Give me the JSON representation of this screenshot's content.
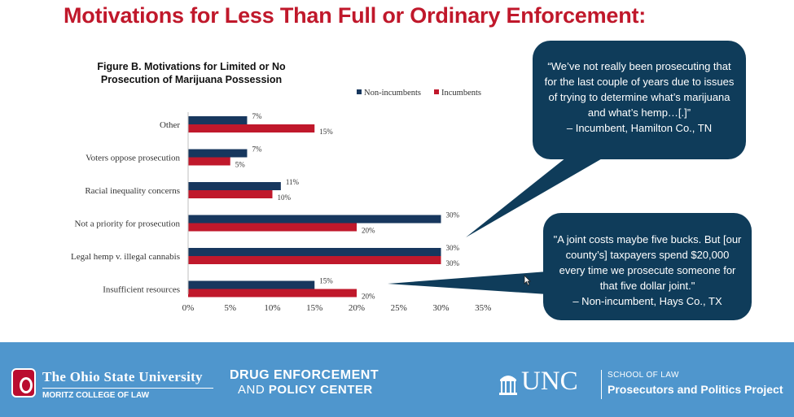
{
  "slide": {
    "title": "Motivations for Less Than Full or Ordinary Enforcement:"
  },
  "figure": {
    "title": "Figure B. Motivations for Limited or No Prosecution of Marijuana Possession"
  },
  "chart_data": {
    "type": "bar",
    "orientation": "horizontal",
    "categories": [
      "Other",
      "Voters oppose prosecution",
      "Racial inequality concerns",
      "Not a priority for prosecution",
      "Legal hemp v. illegal cannabis",
      "Insufficient resources"
    ],
    "series": [
      {
        "name": "Non-incumbents",
        "color": "#17375e",
        "values": [
          7,
          7,
          11,
          30,
          30,
          15
        ],
        "labels": [
          "7%",
          "7%",
          "11%",
          "30%",
          "30%",
          "15%"
        ]
      },
      {
        "name": "Incumbents",
        "color": "#c0182b",
        "values": [
          15,
          5,
          10,
          20,
          30,
          20
        ],
        "labels": [
          "15%",
          "5%",
          "10%",
          "20%",
          "30%",
          "20%"
        ]
      }
    ],
    "xlim": [
      0,
      35
    ],
    "xticks": [
      0,
      5,
      10,
      15,
      20,
      25,
      30,
      35
    ],
    "xtick_labels": [
      "0%",
      "5%",
      "10%",
      "15%",
      "20%",
      "25%",
      "30%",
      "35%"
    ],
    "legend": {
      "position": "top-right",
      "entries": [
        "Non-incumbents",
        "Incumbents"
      ]
    },
    "title": "Figure B. Motivations for Limited or No Prosecution of Marijuana Possession",
    "xlabel": "",
    "ylabel": ""
  },
  "quotes": [
    {
      "text": "“We’ve not really been prosecuting that for the last couple of years due to issues of trying to determine what’s marijuana and what’s hemp…[.]”",
      "attribution": "– Incumbent, Hamilton Co., TN"
    },
    {
      "text": "\"A joint costs maybe five bucks. But [our county’s] taxpayers spend $20,000 every time we prosecute someone for that five dollar joint.\"",
      "attribution": "– Non-incumbent, Hays Co., TX"
    }
  ],
  "footer": {
    "osu_name": "The Ohio State University",
    "osu_college": "MORITZ COLLEGE OF LAW",
    "dep_line1": "DRUG ENFORCEMENT",
    "dep_line2_prefix": "AND ",
    "dep_line2_bold": "POLICY CENTER",
    "unc_text": "UNC",
    "unc_school": "SCHOOL OF LAW",
    "unc_project": "Prosecutors and Politics Project"
  },
  "colors": {
    "title": "#c0182b",
    "non_incumbents": "#17375e",
    "incumbents": "#c0182b",
    "bubble": "#0f3c5a",
    "footer": "#4f96cd"
  }
}
